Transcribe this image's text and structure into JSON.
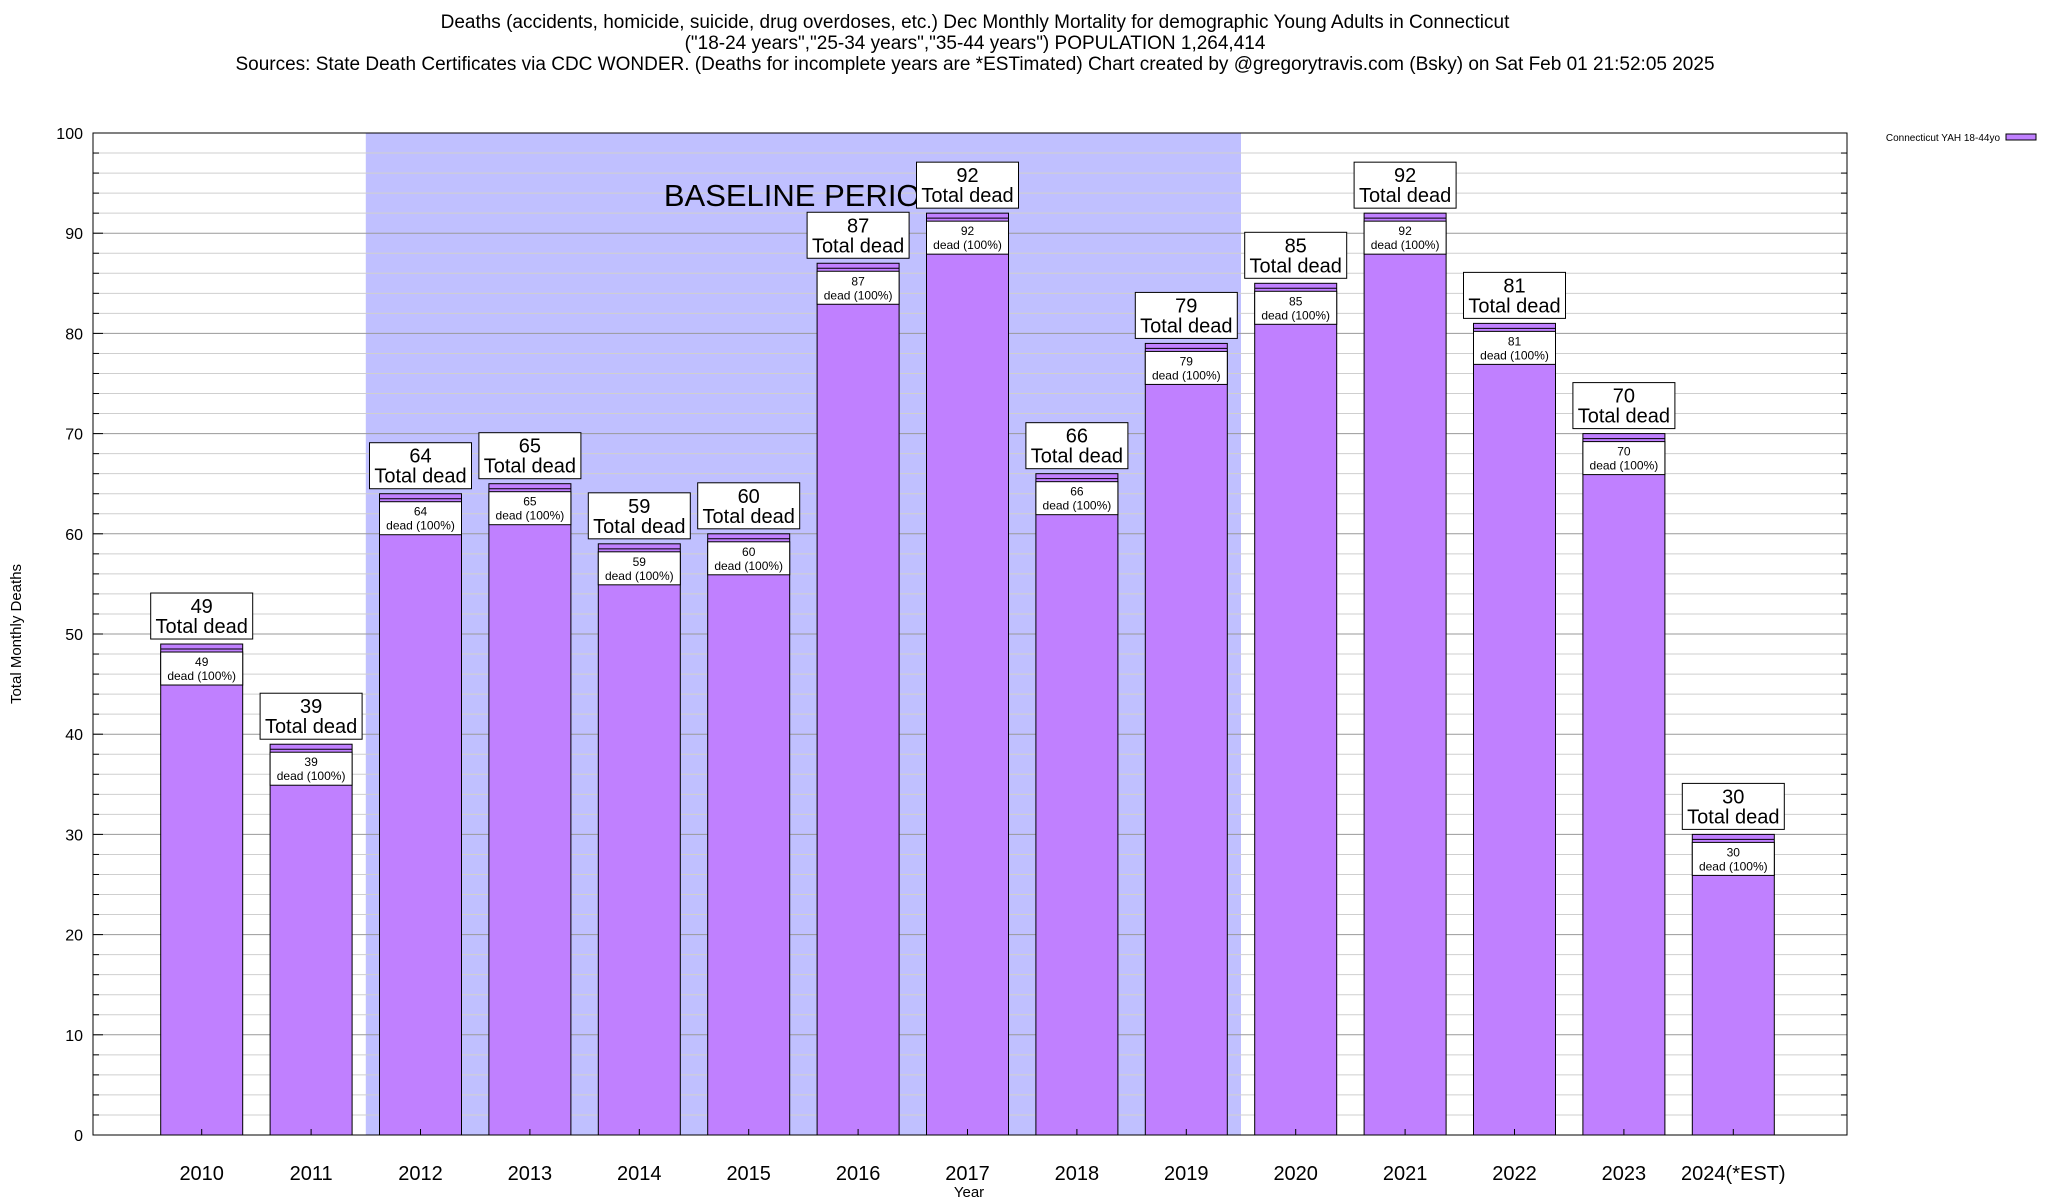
{
  "title_lines": [
    "Deaths (accidents, homicide, suicide, drug overdoses, etc.) Dec Monthly Mortality for demographic Young Adults in Connecticut",
    "(\"18-24 years\",\"25-34 years\",\"35-44 years\") POPULATION 1,264,414",
    "Sources: State Death Certificates via CDC WONDER. (Deaths for incomplete years are *ESTimated)                Chart created by @gregorytravis.com (Bsky) on Sat Feb 01 21:52:05 2025"
  ],
  "chart_data": {
    "type": "bar",
    "xlabel": "Year",
    "ylabel": "Total Monthly Deaths",
    "ylim": [
      0,
      100
    ],
    "y_ticks": [
      0,
      10,
      20,
      30,
      40,
      50,
      60,
      70,
      80,
      90,
      100
    ],
    "grid": true,
    "legend_position": "top-right",
    "categories": [
      "2010",
      "2011",
      "2012",
      "2013",
      "2014",
      "2015",
      "2016",
      "2017",
      "2018",
      "2019",
      "2020",
      "2021",
      "2022",
      "2023",
      "2024(*EST)"
    ],
    "series": [
      {
        "name": "Connecticut YAH 18-44yo",
        "color": "#c080ff",
        "values": [
          49,
          39,
          64,
          65,
          59,
          60,
          87,
          92,
          66,
          79,
          85,
          92,
          81,
          70,
          30
        ]
      }
    ],
    "total_label": "Total dead",
    "segment_label_suffix": "dead (100%)",
    "shaded_region": {
      "label": "BASELINE PERIOD",
      "from_category": "2012",
      "to_category": "2019",
      "color": "#c0c0ff"
    }
  }
}
